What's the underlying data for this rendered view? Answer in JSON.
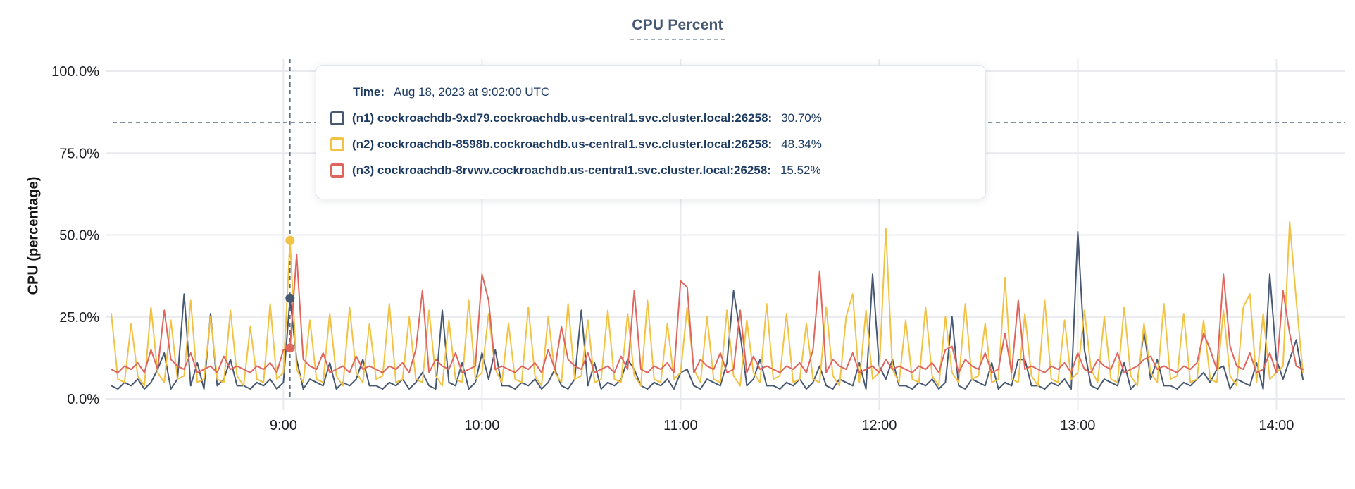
{
  "title": "CPU Percent",
  "y_axis": {
    "label": "CPU (percentage)"
  },
  "tooltip": {
    "time_label": "Time:",
    "time_value": "Aug 18, 2023 at 9:02:00 UTC",
    "rows": [
      {
        "id": "n1",
        "label": "(n1) cockroachdb-9xd79.cockroachdb.us-central1.svc.cluster.local:26258:",
        "value": "30.70%",
        "color": "#475872"
      },
      {
        "id": "n2",
        "label": "(n2) cockroachdb-8598b.cockroachdb.us-central1.svc.cluster.local:26258:",
        "value": "48.34%",
        "color": "#f2c245"
      },
      {
        "id": "n3",
        "label": "(n3) cockroachdb-8rvwv.cockroachdb.us-central1.svc.cluster.local:26258:",
        "value": "15.52%",
        "color": "#e0655d"
      }
    ]
  },
  "chart_data": {
    "type": "line",
    "title": "CPU Percent",
    "xlabel": "",
    "ylabel": "CPU (percentage)",
    "ylim": [
      0,
      100
    ],
    "grid": true,
    "legend_position": "hover-tooltip",
    "y_ticks": [
      {
        "value": 0,
        "label": "0.0%"
      },
      {
        "value": 25,
        "label": "25.0%"
      },
      {
        "value": 50,
        "label": "50.0%"
      },
      {
        "value": 75,
        "label": "75.0%"
      },
      {
        "value": 100,
        "label": "100.0%"
      }
    ],
    "x_ticks": [
      {
        "minute": 52,
        "label": "9:00"
      },
      {
        "minute": 112,
        "label": "10:00"
      },
      {
        "minute": 172,
        "label": "11:00"
      },
      {
        "minute": 232,
        "label": "12:00"
      },
      {
        "minute": 292,
        "label": "13:00"
      },
      {
        "minute": 352,
        "label": "14:00"
      }
    ],
    "x_domain": {
      "start_label": "8:08",
      "end_label": "14:08",
      "minutes": 360,
      "sample_step_minutes": 2
    },
    "hover": {
      "time": "Aug 18, 2023 at 9:02:00 UTC",
      "minute": 54,
      "crosshair_y_percent": 84.3,
      "points": [
        {
          "series": "n1",
          "value": 30.7
        },
        {
          "series": "n2",
          "value": 48.34
        },
        {
          "series": "n3",
          "value": 15.52
        }
      ]
    },
    "series": [
      {
        "id": "n1",
        "name": "n1",
        "host": "cockroachdb-9xd79.cockroachdb.us-central1.svc.cluster.local:26258",
        "color": "#475872",
        "values": [
          4,
          3,
          5,
          4,
          6,
          3,
          5,
          9,
          14,
          3,
          6,
          32,
          4,
          11,
          3,
          26,
          4,
          6,
          12,
          4,
          4,
          3,
          5,
          4,
          6,
          3,
          5,
          30.7,
          12,
          3,
          6,
          5,
          4,
          11,
          3,
          5,
          4,
          6,
          12,
          4,
          4,
          3,
          5,
          4,
          6,
          3,
          5,
          8,
          4,
          3,
          27,
          5,
          4,
          11,
          3,
          5,
          14,
          6,
          15,
          4,
          4,
          3,
          5,
          4,
          6,
          3,
          5,
          9,
          4,
          3,
          6,
          27,
          4,
          11,
          3,
          5,
          4,
          6,
          12,
          9,
          4,
          3,
          5,
          4,
          6,
          3,
          8,
          9,
          4,
          3,
          6,
          5,
          4,
          11,
          33,
          20,
          4,
          6,
          12,
          4,
          4,
          3,
          5,
          4,
          6,
          3,
          5,
          10,
          4,
          3,
          6,
          5,
          4,
          11,
          3,
          38,
          10,
          6,
          12,
          4,
          4,
          3,
          5,
          4,
          6,
          3,
          5,
          25,
          4,
          3,
          6,
          5,
          4,
          11,
          3,
          5,
          4,
          12,
          12,
          4,
          4,
          3,
          5,
          4,
          6,
          3,
          51,
          15,
          4,
          3,
          6,
          5,
          4,
          11,
          3,
          5,
          21,
          6,
          12,
          4,
          4,
          3,
          5,
          4,
          6,
          8,
          5,
          9,
          10,
          3,
          6,
          5,
          4,
          11,
          3,
          38,
          12,
          6,
          12,
          18,
          6
        ]
      },
      {
        "id": "n2",
        "name": "n2",
        "host": "cockroachdb-8598b.cockroachdb.us-central1.svc.cluster.local:26258",
        "color": "#f2c245",
        "values": [
          26,
          6,
          5,
          23,
          7,
          4,
          28,
          8,
          5,
          24,
          6,
          7,
          30,
          5,
          6,
          25,
          6,
          5,
          27,
          7,
          4,
          22,
          6,
          5,
          29,
          6,
          8,
          48.34,
          9,
          5,
          24,
          6,
          5,
          26,
          7,
          4,
          28,
          8,
          5,
          23,
          6,
          7,
          29,
          5,
          6,
          25,
          6,
          5,
          27,
          7,
          4,
          24,
          6,
          5,
          30,
          6,
          8,
          26,
          9,
          5,
          23,
          6,
          5,
          28,
          7,
          4,
          25,
          8,
          5,
          29,
          6,
          7,
          24,
          5,
          6,
          27,
          6,
          5,
          26,
          7,
          4,
          30,
          6,
          5,
          23,
          6,
          8,
          28,
          9,
          5,
          25,
          6,
          5,
          27,
          7,
          4,
          24,
          8,
          5,
          29,
          6,
          7,
          26,
          5,
          6,
          23,
          6,
          5,
          28,
          7,
          4,
          25,
          32,
          5,
          27,
          6,
          8,
          52,
          9,
          5,
          24,
          6,
          5,
          28,
          7,
          4,
          25,
          8,
          5,
          29,
          6,
          7,
          23,
          5,
          6,
          37,
          6,
          5,
          26,
          7,
          4,
          30,
          6,
          5,
          24,
          6,
          8,
          27,
          9,
          5,
          25,
          6,
          5,
          28,
          7,
          4,
          23,
          8,
          5,
          29,
          6,
          7,
          26,
          5,
          6,
          24,
          6,
          5,
          27,
          7,
          4,
          28,
          32,
          5,
          26,
          6,
          8,
          10,
          54,
          30,
          8
        ]
      },
      {
        "id": "n3",
        "name": "n3",
        "host": "cockroachdb-8rvwv.cockroachdb.us-central1.svc.cluster.local:26258",
        "color": "#e0655d",
        "values": [
          9,
          8,
          10,
          9,
          11,
          8,
          15,
          9,
          27,
          12,
          10,
          9,
          14,
          8,
          9,
          10,
          8,
          13,
          9,
          10,
          9,
          8,
          10,
          9,
          11,
          8,
          15,
          15.52,
          44,
          12,
          10,
          9,
          14,
          8,
          9,
          10,
          8,
          13,
          9,
          10,
          9,
          8,
          10,
          9,
          11,
          8,
          15,
          33,
          8,
          12,
          10,
          9,
          14,
          8,
          9,
          10,
          38,
          30,
          9,
          10,
          9,
          8,
          10,
          9,
          11,
          8,
          15,
          9,
          22,
          12,
          10,
          9,
          14,
          8,
          9,
          10,
          8,
          13,
          9,
          33,
          9,
          8,
          10,
          9,
          11,
          8,
          36,
          34,
          8,
          12,
          10,
          9,
          14,
          8,
          9,
          27,
          8,
          13,
          9,
          10,
          9,
          8,
          10,
          9,
          11,
          8,
          15,
          39,
          8,
          12,
          10,
          9,
          14,
          8,
          9,
          10,
          8,
          12,
          9,
          10,
          9,
          8,
          10,
          9,
          11,
          8,
          15,
          16,
          8,
          12,
          10,
          9,
          14,
          8,
          9,
          20,
          8,
          30,
          9,
          10,
          9,
          8,
          10,
          9,
          11,
          8,
          14,
          9,
          8,
          12,
          10,
          9,
          14,
          8,
          9,
          10,
          12,
          13,
          9,
          10,
          9,
          8,
          10,
          9,
          11,
          20,
          15,
          9,
          38,
          16,
          10,
          9,
          14,
          8,
          9,
          14,
          8,
          33,
          20,
          10,
          9
        ]
      }
    ],
    "colors": {
      "grid": "#e8eaed",
      "crosshair": "#5a6b7e",
      "axis_text": "#1d1f23",
      "title": "#475872",
      "tooltip_text": "#1c3a62"
    }
  }
}
